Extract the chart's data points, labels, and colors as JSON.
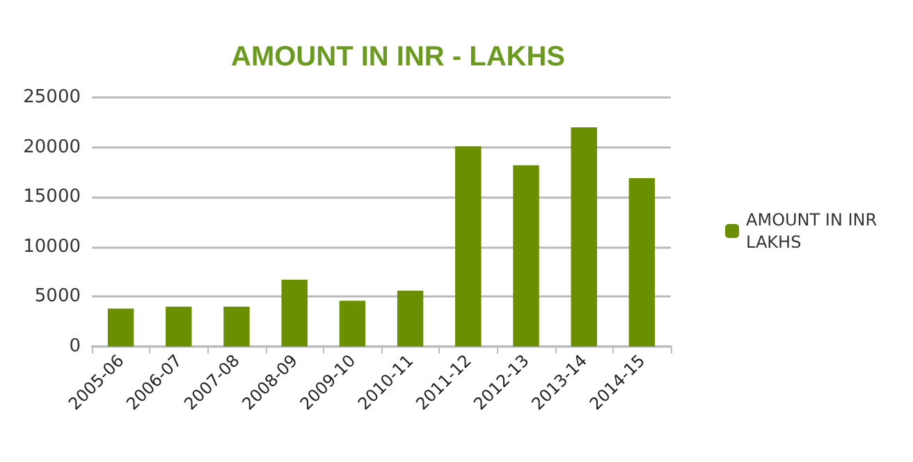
{
  "chart_data": {
    "type": "bar",
    "title": "AMOUNT IN INR - LAKHS",
    "categories": [
      "2005-06",
      "2006-07",
      "2007-08",
      "2008-09",
      "2009-10",
      "2010-11",
      "2011-12",
      "2012-13",
      "2013-14",
      "2014-15"
    ],
    "series": [
      {
        "name": "AMOUNT IN INR LAKHS",
        "color": "#6a8f00",
        "values": [
          3800,
          4000,
          4000,
          6700,
          4600,
          5600,
          20100,
          18200,
          22000,
          16900
        ]
      }
    ],
    "ylim": [
      0,
      25000
    ],
    "yticks": [
      0,
      5000,
      10000,
      15000,
      20000,
      25000
    ],
    "grid": "y",
    "legend": "right"
  }
}
